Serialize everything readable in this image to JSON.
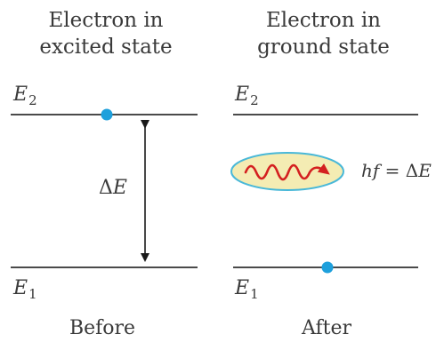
{
  "before": {
    "title_line1": "Electron in",
    "title_line2": "excited state",
    "upper_level_symbol": "E",
    "upper_level_subscript": "2",
    "lower_level_symbol": "E",
    "lower_level_subscript": "1",
    "gap_symbol_prefix": "Δ",
    "gap_symbol": "E",
    "caption": "Before"
  },
  "after": {
    "title_line1": "Electron in",
    "title_line2": "ground state",
    "upper_level_symbol": "E",
    "upper_level_subscript": "2",
    "lower_level_symbol": "E",
    "lower_level_subscript": "1",
    "photon_eq_h": "h",
    "photon_eq_f": "f",
    "photon_eq_rest": " = Δ",
    "photon_eq_E": "E",
    "caption": "After"
  },
  "colors": {
    "level_line": "#4a4a4a",
    "electron": "#1ea0dc",
    "photon_fill": "#f4ecb3",
    "photon_stroke": "#49b8d8",
    "photon_wave": "#d42020",
    "arrow": "#1a1a1a"
  }
}
